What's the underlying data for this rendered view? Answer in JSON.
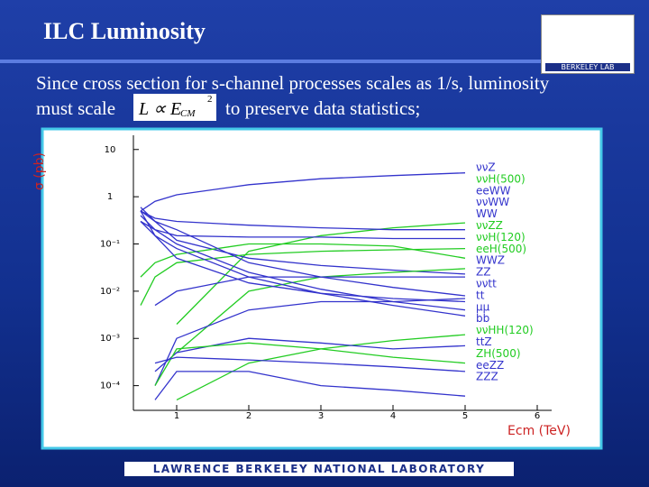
{
  "slide": {
    "title": "ILC Luminosity",
    "body_line_1": "Since cross section for s-channel processes scales as 1/s, luminosity",
    "body_line_2_start": "must scale",
    "body_line_2_end": "to preserve data statistics;",
    "formula": {
      "main": "L ∝ E",
      "subscript": "CM",
      "superscript": "2"
    },
    "logo_text": "BERKELEY LAB",
    "footer": "LAWRENCE BERKELEY NATIONAL LABORATORY"
  },
  "chart_data": {
    "type": "line",
    "ylabel": "σ (pb)",
    "xlabel": "Ecm (TeV)",
    "log_y": true,
    "grid": false,
    "legend": "right",
    "x": [
      0.5,
      0.7,
      1,
      2,
      3,
      4,
      5
    ],
    "xlim": [
      0.4,
      6.2
    ],
    "xticks": [
      1,
      2,
      3,
      4,
      5,
      6
    ],
    "ylim": [
      3e-05,
      20
    ],
    "yticks": [
      {
        "value": 0.0001,
        "label": "10⁻⁴"
      },
      {
        "value": 0.001,
        "label": "10⁻³"
      },
      {
        "value": 0.01,
        "label": "10⁻²"
      },
      {
        "value": 0.1,
        "label": "10⁻¹"
      },
      1,
      10
    ],
    "series": [
      {
        "name": "ννZ",
        "color": "#3333cc",
        "values": [
          0.5,
          0.8,
          1.1,
          1.8,
          2.4,
          2.8,
          3.2
        ]
      },
      {
        "name": "ννH(500)",
        "color": "#22cc22",
        "values": [
          null,
          null,
          0.002,
          0.07,
          0.15,
          0.22,
          0.28
        ]
      },
      {
        "name": "eeWW",
        "color": "#3333cc",
        "values": [
          0.5,
          0.35,
          0.3,
          0.25,
          0.22,
          0.2,
          0.2
        ]
      },
      {
        "name": "ννWW",
        "color": "#3333cc",
        "values": [
          0.3,
          0.2,
          0.15,
          0.14,
          0.14,
          0.13,
          0.13
        ]
      },
      {
        "name": "WW",
        "color": "#3333cc",
        "values": [
          0.6,
          0.3,
          0.12,
          0.05,
          0.035,
          0.028,
          0.023
        ]
      },
      {
        "name": "ννZZ",
        "color": "#22cc22",
        "values": [
          0.005,
          0.02,
          0.04,
          0.06,
          0.07,
          0.075,
          0.08
        ]
      },
      {
        "name": "ννH(120)",
        "color": "#22cc22",
        "values": [
          0.02,
          0.04,
          0.06,
          0.1,
          0.1,
          0.09,
          0.05
        ]
      },
      {
        "name": "eeH(500)",
        "color": "#22cc22",
        "values": [
          null,
          null,
          0.0005,
          0.01,
          0.02,
          0.025,
          0.03
        ]
      },
      {
        "name": "WWZ",
        "color": "#3333cc",
        "values": [
          null,
          0.005,
          0.01,
          0.02,
          0.02,
          0.02,
          0.02
        ]
      },
      {
        "name": "ZZ",
        "color": "#3333cc",
        "values": [
          0.5,
          0.15,
          0.05,
          0.015,
          0.009,
          0.007,
          0.006
        ]
      },
      {
        "name": "ννtt",
        "color": "#3333cc",
        "values": [
          null,
          0.0001,
          0.001,
          0.004,
          0.006,
          0.006,
          0.007
        ]
      },
      {
        "name": "tt",
        "color": "#3333cc",
        "values": [
          0.5,
          0.3,
          0.2,
          0.04,
          0.02,
          0.012,
          0.008
        ]
      },
      {
        "name": "μμ",
        "color": "#3333cc",
        "values": [
          0.4,
          0.2,
          0.1,
          0.025,
          0.011,
          0.006,
          0.004
        ]
      },
      {
        "name": "bb",
        "color": "#3333cc",
        "values": [
          0.3,
          0.15,
          0.08,
          0.02,
          0.009,
          0.005,
          0.003
        ]
      },
      {
        "name": "ννHH(120)",
        "color": "#22cc22",
        "values": [
          null,
          null,
          5e-05,
          0.0003,
          0.0006,
          0.0009,
          0.0012
        ]
      },
      {
        "name": "ttZ",
        "color": "#3333cc",
        "values": [
          null,
          0.0002,
          0.0005,
          0.001,
          0.0008,
          0.0006,
          0.0007
        ]
      },
      {
        "name": "ZH(500)",
        "color": "#22cc22",
        "values": [
          null,
          0.0001,
          0.0006,
          0.0008,
          0.0006,
          0.0004,
          0.0003
        ]
      },
      {
        "name": "eeZZ",
        "color": "#3333cc",
        "values": [
          null,
          0.0003,
          0.0004,
          0.00035,
          0.0003,
          0.00025,
          0.0002
        ]
      },
      {
        "name": "ZZZ",
        "color": "#3333cc",
        "values": [
          null,
          5e-05,
          0.0002,
          0.0002,
          0.0001,
          8e-05,
          6e-05
        ]
      }
    ]
  }
}
